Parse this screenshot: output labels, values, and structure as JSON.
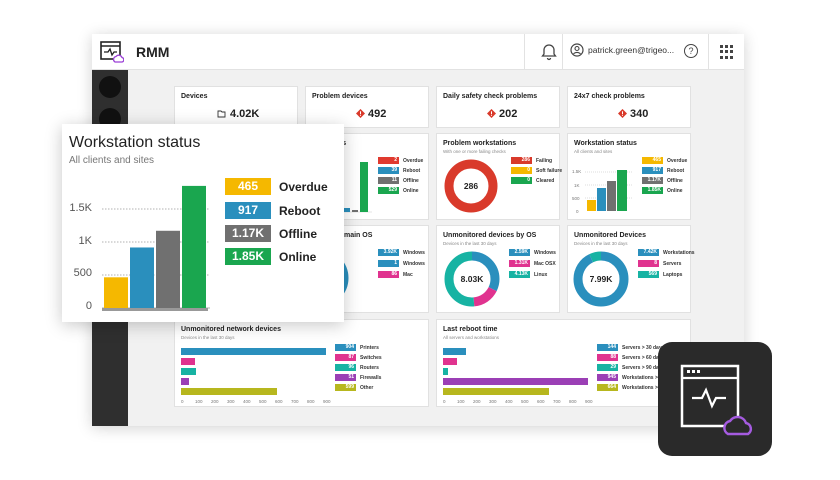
{
  "app": {
    "title": "RMM",
    "user": "patrick.green@trigeo...",
    "help_glyph": "?"
  },
  "icons": [
    "rmm-logo-icon",
    "bell-icon",
    "user-icon",
    "help-icon",
    "app-grid-icon",
    "device-icon",
    "alert-icon"
  ],
  "kpis": [
    {
      "title": "Devices",
      "value": "4.02K",
      "icon": "device-icon"
    },
    {
      "title": "Problem devices",
      "value": "492",
      "icon": "alert-icon"
    },
    {
      "title": "Daily safety check problems",
      "value": "202",
      "icon": "alert-icon"
    },
    {
      "title": "24x7 check problems",
      "value": "340",
      "icon": "alert-icon"
    }
  ],
  "workstation_status": {
    "title": "Workstation status",
    "subtitle": "All clients and sites",
    "legend": [
      {
        "value": "465",
        "label": "Overdue",
        "color": "#f5b800"
      },
      {
        "value": "917",
        "label": "Reboot",
        "color": "#2a8fbd"
      },
      {
        "value": "1.17K",
        "label": "Offline",
        "color": "#707070"
      },
      {
        "value": "1.85K",
        "label": "Online",
        "color": "#1aa64f"
      }
    ],
    "ticks_big": [
      "1.5K",
      "1K",
      "500",
      "0"
    ],
    "ticks_small": [
      "1.5K",
      "1K",
      "500",
      "0"
    ]
  },
  "server_status": {
    "title_fragment": "us",
    "legend": [
      {
        "value": "2",
        "label": "Overdue",
        "color": "#e03a2f"
      },
      {
        "value": "39",
        "label": "Reboot",
        "color": "#2a8fbd"
      },
      {
        "value": "11",
        "label": "Offline",
        "color": "#707070"
      },
      {
        "value": "529",
        "label": "Online",
        "color": "#1aa64f"
      }
    ]
  },
  "problem_workstations": {
    "title": "Problem workstations",
    "subtitle": "With one or more failing checks",
    "center": "286",
    "legend": [
      {
        "value": "286",
        "label": "Failing",
        "color": "#d93a2b"
      },
      {
        "value": "0",
        "label": "Soft failure",
        "color": "#f5b800"
      },
      {
        "value": "0",
        "label": "Cleared",
        "color": "#1aa64f"
      }
    ]
  },
  "main_os": {
    "title_fragment": "main OS",
    "legend": [
      {
        "value": "3.92K",
        "label": "Windows",
        "color": "#2a8fbd"
      },
      {
        "value": "1",
        "label": "Windows",
        "color": "#2a8fbd"
      },
      {
        "value": "86",
        "label": "Mac",
        "color": "#e0338f"
      }
    ]
  },
  "unmonitored_by_os": {
    "title": "Unmonitored devices by OS",
    "subtitle": "Devices in the last 30 days",
    "center": "8.03K",
    "legend": [
      {
        "value": "2.59K",
        "label": "Windows",
        "color": "#2a8fbd"
      },
      {
        "value": "1.31K",
        "label": "Mac OSX",
        "color": "#e0338f"
      },
      {
        "value": "4.13K",
        "label": "Linux",
        "color": "#17b3a3"
      }
    ]
  },
  "unmonitored_devices": {
    "title": "Unmonitored Devices",
    "subtitle": "Devices in the last 30 days",
    "center": "7.99K",
    "legend": [
      {
        "value": "7.42K",
        "label": "Workstations",
        "color": "#2a8fbd"
      },
      {
        "value": "8",
        "label": "Servers",
        "color": "#e0338f"
      },
      {
        "value": "569",
        "label": "Laptops",
        "color": "#17b3a3"
      }
    ]
  },
  "network_devices": {
    "title": "Unmonitored network devices",
    "subtitle": "Devices in the last 30 days",
    "legend": [
      {
        "value": "904",
        "label": "Printers",
        "color": "#2a8fbd"
      },
      {
        "value": "87",
        "label": "Switches",
        "color": "#e0338f"
      },
      {
        "value": "96",
        "label": "Routers",
        "color": "#17b3a3"
      },
      {
        "value": "51",
        "label": "Firewalls",
        "color": "#9b3fb5"
      },
      {
        "value": "599",
        "label": "Other",
        "color": "#b7b71e"
      }
    ],
    "axis": [
      "0",
      "100",
      "200",
      "300",
      "400",
      "500",
      "600",
      "700",
      "800",
      "900"
    ]
  },
  "last_reboot": {
    "title": "Last reboot time",
    "subtitle": "All servers and workstations",
    "legend": [
      {
        "value": "144",
        "label": "Servers > 30 days",
        "color": "#2a8fbd"
      },
      {
        "value": "88",
        "label": "Servers > 60 days",
        "color": "#e0338f"
      },
      {
        "value": "29",
        "label": "Servers > 90 days",
        "color": "#17b3a3"
      },
      {
        "value": "945",
        "label": "Workstations > ...",
        "color": "#9b3fb5"
      },
      {
        "value": "664",
        "label": "Workstations > ...",
        "color": "#b7b71e"
      }
    ],
    "axis": [
      "0",
      "100",
      "200",
      "300",
      "400",
      "500",
      "600",
      "700",
      "800",
      "900"
    ]
  },
  "chart_data": [
    {
      "type": "bar",
      "title": "Workstation status",
      "categories": [
        "Overdue",
        "Reboot",
        "Offline",
        "Online"
      ],
      "values": [
        465,
        917,
        1170,
        1850
      ],
      "ylim": [
        0,
        2000
      ]
    },
    {
      "type": "bar",
      "categories": [
        "Overdue",
        "Reboot",
        "Offline",
        "Online"
      ],
      "values": [
        2,
        39,
        11,
        529
      ]
    },
    {
      "type": "pie",
      "title": "Problem workstations",
      "categories": [
        "Failing",
        "Soft failure",
        "Cleared"
      ],
      "values": [
        286,
        0,
        0
      ]
    },
    {
      "type": "pie",
      "title": "Unmonitored devices by OS",
      "categories": [
        "Windows",
        "Mac OSX",
        "Linux"
      ],
      "values": [
        2590,
        1310,
        4130
      ]
    },
    {
      "type": "pie",
      "title": "Unmonitored Devices",
      "categories": [
        "Workstations",
        "Servers",
        "Laptops"
      ],
      "values": [
        7420,
        8,
        569
      ]
    },
    {
      "type": "bar",
      "title": "Unmonitored network devices",
      "categories": [
        "Printers",
        "Switches",
        "Routers",
        "Firewalls",
        "Other"
      ],
      "values": [
        904,
        87,
        96,
        51,
        599
      ],
      "xlim": [
        0,
        900
      ]
    },
    {
      "type": "bar",
      "title": "Last reboot time",
      "categories": [
        "Servers > 30 days",
        "Servers > 60 days",
        "Servers > 90 days",
        "Workstations > ...",
        "Workstations > ..."
      ],
      "values": [
        144,
        88,
        29,
        945,
        664
      ],
      "xlim": [
        0,
        900
      ]
    }
  ]
}
